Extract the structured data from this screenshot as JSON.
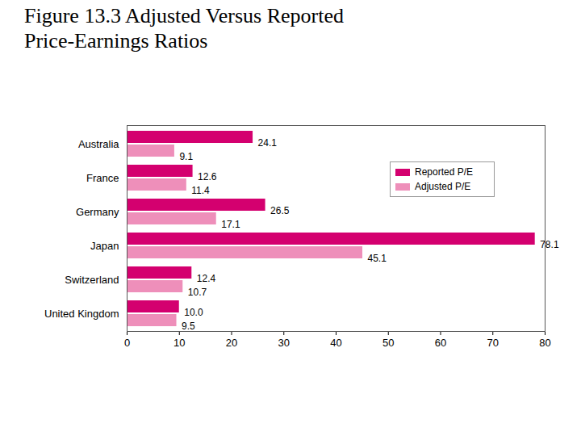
{
  "chart_data": {
    "type": "bar",
    "orientation": "horizontal",
    "title": "Figure 13.3 Adjusted Versus Reported Price-Earnings Ratios",
    "categories": [
      "Australia",
      "France",
      "Germany",
      "Japan",
      "Switzerland",
      "United Kingdom"
    ],
    "series": [
      {
        "name": "Reported P/E",
        "color": "#d4006f",
        "values": [
          24.1,
          12.6,
          26.5,
          78.1,
          12.4,
          10.0
        ],
        "value_labels": [
          "24.1",
          "12.6",
          "26.5",
          "78.1",
          "12.4",
          "10.0"
        ]
      },
      {
        "name": "Adjusted P/E",
        "color": "#ee8fba",
        "values": [
          9.1,
          11.4,
          17.1,
          45.1,
          10.7,
          9.5
        ],
        "value_labels": [
          "9.1",
          "11.4",
          "17.1",
          "45.1",
          "10.7",
          "9.5"
        ]
      }
    ],
    "xlim": [
      0,
      80
    ],
    "xticks": [
      0,
      10,
      20,
      30,
      40,
      50,
      60,
      70,
      80
    ],
    "grid": false,
    "legend": "upper right",
    "data_labels": true
  }
}
